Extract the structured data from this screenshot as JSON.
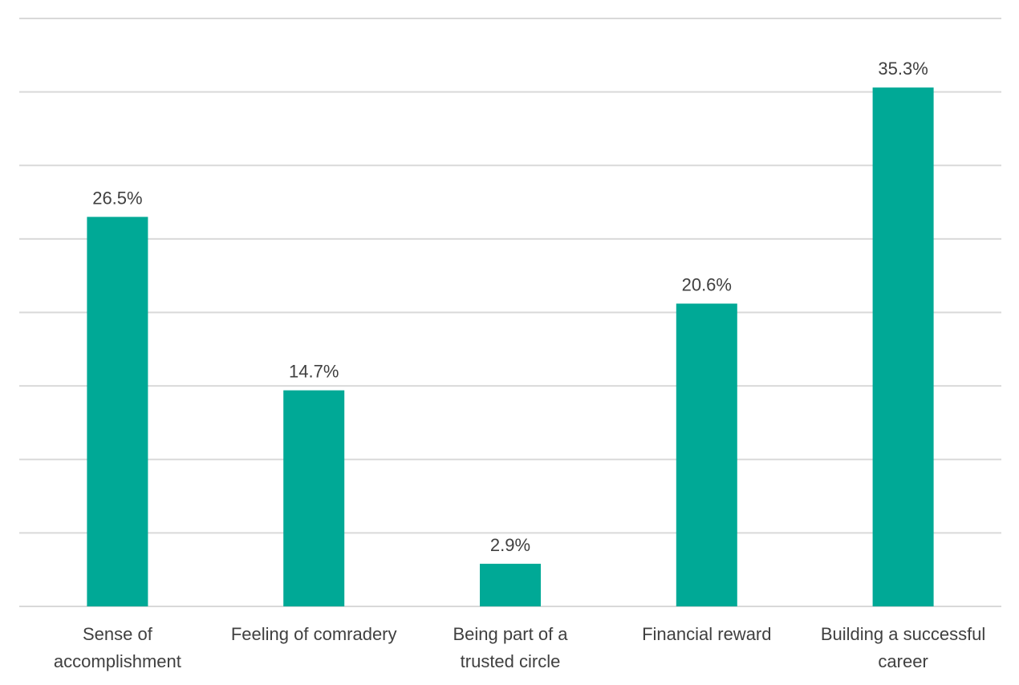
{
  "chart_data": {
    "type": "bar",
    "title": "",
    "xlabel": "",
    "ylabel": "",
    "categories": [
      [
        "Sense of",
        "accomplishment"
      ],
      [
        "Feeling of comradery"
      ],
      [
        "Being part of a",
        "trusted circle"
      ],
      [
        "Financial reward"
      ],
      [
        "Building a successful",
        "career"
      ]
    ],
    "values": [
      26.5,
      14.7,
      2.9,
      20.6,
      35.3
    ],
    "value_labels": [
      "26.5%",
      "14.7%",
      "2.9%",
      "20.6%",
      "35.3%"
    ],
    "ylim": [
      0,
      40
    ],
    "grid": true,
    "gridline_step": 5,
    "legend": "none",
    "bar_color": "#00a996"
  }
}
